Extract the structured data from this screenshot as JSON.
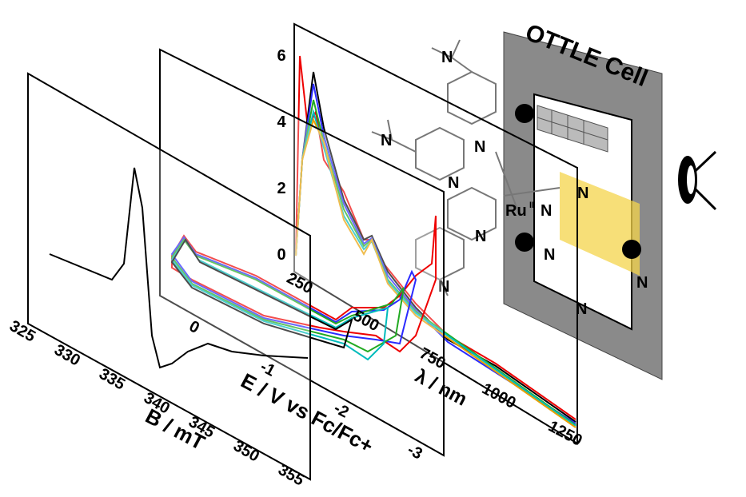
{
  "cell": {
    "title": "OTTLE Cell"
  },
  "epr": {
    "axis_label": "B / mT",
    "ticks": [
      "325",
      "330",
      "335",
      "340",
      "345",
      "350",
      "355"
    ]
  },
  "cv": {
    "axis_label": "E / V vs Fc/Fc+",
    "ticks": [
      "0",
      "-1",
      "-2",
      "-3"
    ]
  },
  "uvvis": {
    "axis_label": "λ / nm",
    "x_ticks": [
      "250",
      "500",
      "750",
      "1000",
      "1250"
    ],
    "y_ticks": [
      "0",
      "2",
      "4",
      "6"
    ]
  },
  "molecule": {
    "nitrogen": "N",
    "metal": "Ru",
    "oxidation_state": "II"
  }
}
